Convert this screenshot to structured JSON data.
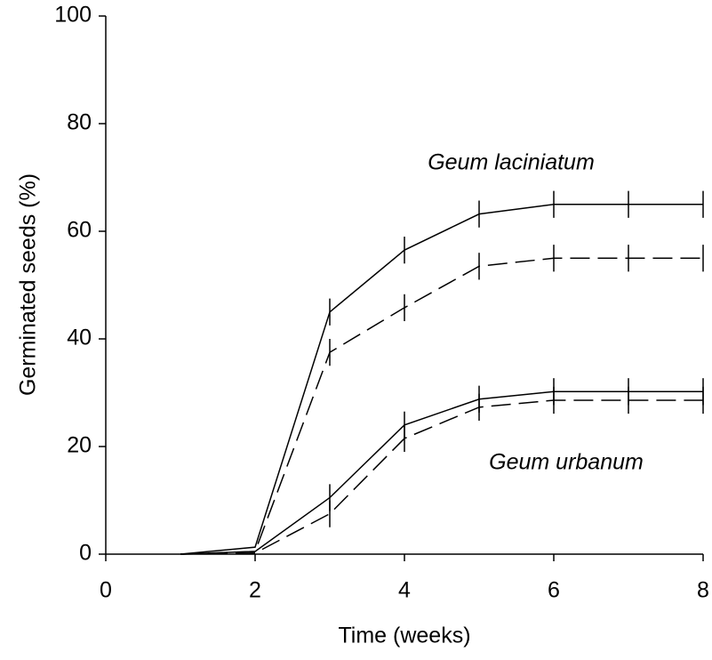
{
  "chart_data": {
    "type": "line",
    "x_label": "Time (weeks)",
    "y_label": "Germinated seeds (%)",
    "x": [
      1,
      2,
      3,
      4,
      5,
      6,
      7,
      8
    ],
    "series": [
      {
        "color": "#000000",
        "dash": "solid",
        "values": [
          0,
          1.3,
          45,
          56.5,
          63.2,
          65,
          65,
          65
        ],
        "errors": [
          null,
          null,
          2.5,
          2.5,
          2.5,
          2.5,
          2.5,
          2.5
        ]
      },
      {
        "color": "#000000",
        "dash": "dashed",
        "values": [
          0,
          0.5,
          37.5,
          45.8,
          53.5,
          55,
          55,
          55
        ],
        "errors": [
          null,
          null,
          2.5,
          2.5,
          2.5,
          2.5,
          2.5,
          2.5
        ]
      },
      {
        "color": "#000000",
        "dash": "solid",
        "values": [
          0,
          0.5,
          10.5,
          24,
          28.8,
          30.2,
          30.2,
          30.2
        ],
        "errors": [
          null,
          null,
          2.5,
          2.5,
          2.5,
          2.5,
          2.5,
          2.5
        ]
      },
      {
        "color": "#000000",
        "dash": "dashed",
        "values": [
          0,
          0.2,
          7.5,
          21.5,
          27.3,
          28.6,
          28.6,
          28.6
        ],
        "errors": [
          null,
          null,
          2.5,
          2.5,
          2.5,
          2.5,
          2.5,
          2.5
        ]
      }
    ],
    "annotations": [
      {
        "text": "Geum laciniatum"
      },
      {
        "text": "Geum urbanum"
      }
    ],
    "xlim": [
      0,
      8
    ],
    "xticks": [
      0,
      2,
      4,
      6,
      8
    ],
    "ylim": [
      0,
      100
    ],
    "yticks": [
      0,
      20,
      40,
      60,
      80,
      100
    ],
    "grid": false
  }
}
